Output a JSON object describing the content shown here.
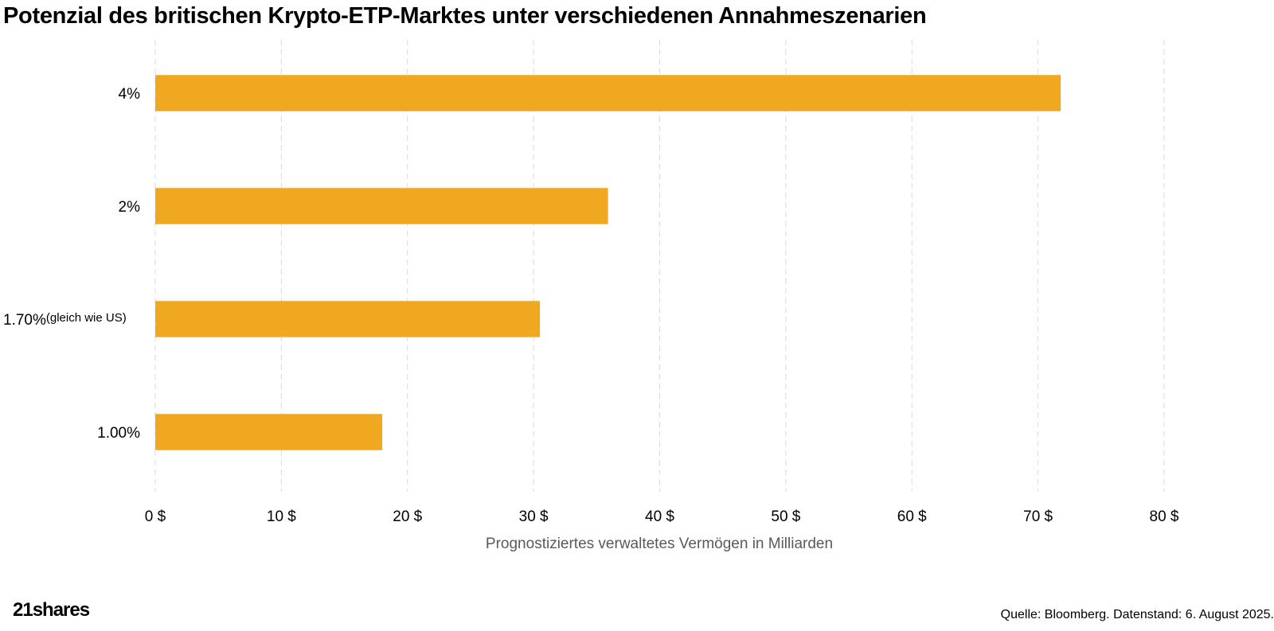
{
  "title": "Potenzial des britischen Krypto-ETP-Marktes unter verschiedenen Annahmeszenarien",
  "brand": {
    "name": "21shares"
  },
  "source": "Quelle: Bloomberg. Datenstand: 6. August 2025.",
  "colors": {
    "bar": "#EFA820",
    "grid": "#d9d9d9",
    "axis_text": "#000000",
    "axis_title": "#595959"
  },
  "chart_data": {
    "type": "bar",
    "orientation": "horizontal",
    "categories": [
      {
        "label": "4%",
        "note": ""
      },
      {
        "label": "2%",
        "note": ""
      },
      {
        "label": "1.70%",
        "note": "(gleich wie US)"
      },
      {
        "label": "1.00%",
        "note": ""
      }
    ],
    "values": [
      71.8,
      35.9,
      30.5,
      18.0
    ],
    "xlabel": "Prognostiziertes verwaltetes Vermögen in Milliarden",
    "xlim": [
      0,
      80
    ],
    "xticks": [
      0,
      10,
      20,
      30,
      40,
      50,
      60,
      70,
      80
    ],
    "tick_labels": [
      "0 $",
      "10 $",
      "20 $",
      "30 $",
      "40 $",
      "50 $",
      "60 $",
      "70 $",
      "80 $"
    ],
    "grid": true,
    "grid_style": "dashed vertical",
    "legend": "none"
  }
}
